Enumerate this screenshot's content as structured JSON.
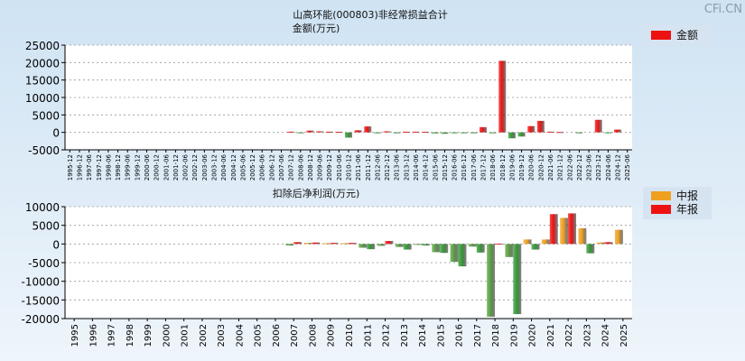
{
  "watermark": "CFi.CN",
  "chart_data": [
    {
      "type": "bar",
      "title": "山高环能(000803)非经常损益合计",
      "ylabel": "金额(万元)",
      "ylim": [
        -5000,
        25000
      ],
      "yticks": [
        -5000,
        0,
        5000,
        10000,
        15000,
        20000,
        25000
      ],
      "grid": true,
      "legend_position": "top-right",
      "series": [
        {
          "name": "金额",
          "color": "#ee1111",
          "negative_color": "#339933"
        }
      ],
      "categories": [
        "1995-12",
        "1996-12",
        "1997-06",
        "1997-12",
        "1998-06",
        "1998-12",
        "1999-06",
        "1999-12",
        "2000-06",
        "2000-12",
        "2001-06",
        "2001-12",
        "2002-06",
        "2002-12",
        "2003-06",
        "2003-12",
        "2004-06",
        "2004-12",
        "2005-06",
        "2005-12",
        "2006-06",
        "2006-12",
        "2007-06",
        "2007-12",
        "2008-06",
        "2008-12",
        "2009-06",
        "2009-12",
        "2010-06",
        "2010-12",
        "2011-06",
        "2011-12",
        "2012-06",
        "2012-12",
        "2013-06",
        "2013-12",
        "2014-06",
        "2014-12",
        "2015-06",
        "2015-12",
        "2016-06",
        "2016-12",
        "2017-06",
        "2017-12",
        "2018-06",
        "2018-12",
        "2019-06",
        "2019-12",
        "2020-06",
        "2020-12",
        "2021-06",
        "2021-12",
        "2022-06",
        "2022-12",
        "2023-06",
        "2023-12",
        "2024-06",
        "2024-12",
        "2025-06"
      ],
      "values": [
        0,
        0,
        0,
        0,
        0,
        0,
        0,
        0,
        0,
        0,
        0,
        0,
        0,
        0,
        0,
        0,
        0,
        0,
        0,
        0,
        0,
        0,
        0,
        200,
        -200,
        500,
        300,
        200,
        150,
        -1500,
        600,
        1700,
        -200,
        300,
        -150,
        200,
        200,
        150,
        -300,
        -400,
        -250,
        -200,
        -200,
        1500,
        -100,
        20500,
        -1700,
        -1200,
        1800,
        3300,
        200,
        100,
        0,
        -100,
        0,
        3600,
        -100,
        800,
        0
      ]
    },
    {
      "type": "bar",
      "title": "扣除后净利润(万元)",
      "ylim": [
        -20000,
        10000
      ],
      "yticks": [
        -20000,
        -15000,
        -10000,
        -5000,
        0,
        5000,
        10000
      ],
      "grid": true,
      "legend_position": "top-right",
      "categories": [
        "1995",
        "1996",
        "1997",
        "1998",
        "1999",
        "2000",
        "2001",
        "2002",
        "2003",
        "2004",
        "2005",
        "2006",
        "2007",
        "2008",
        "2009",
        "2010",
        "2011",
        "2012",
        "2013",
        "2014",
        "2015",
        "2016",
        "2017",
        "2018",
        "2019",
        "2020",
        "2021",
        "2022",
        "2023",
        "2024",
        "2025"
      ],
      "series": [
        {
          "name": "中报",
          "color": "#f0a020",
          "negative_color": "#5aa040",
          "values": [
            null,
            null,
            null,
            null,
            null,
            null,
            null,
            null,
            null,
            null,
            null,
            null,
            -400,
            300,
            200,
            200,
            -1000,
            -500,
            -800,
            -200,
            -2200,
            -4800,
            -700,
            -19500,
            -3500,
            1200,
            1200,
            7000,
            4200,
            400,
            3800
          ]
        },
        {
          "name": "年报",
          "color": "#ee1111",
          "negative_color": "#339933",
          "values": [
            null,
            null,
            null,
            null,
            null,
            null,
            null,
            null,
            null,
            null,
            null,
            null,
            500,
            400,
            300,
            300,
            -1400,
            800,
            -1500,
            -400,
            -2400,
            -6000,
            -2300,
            100,
            -18800,
            -1500,
            8000,
            8200,
            -2500,
            500,
            null
          ]
        }
      ]
    }
  ]
}
